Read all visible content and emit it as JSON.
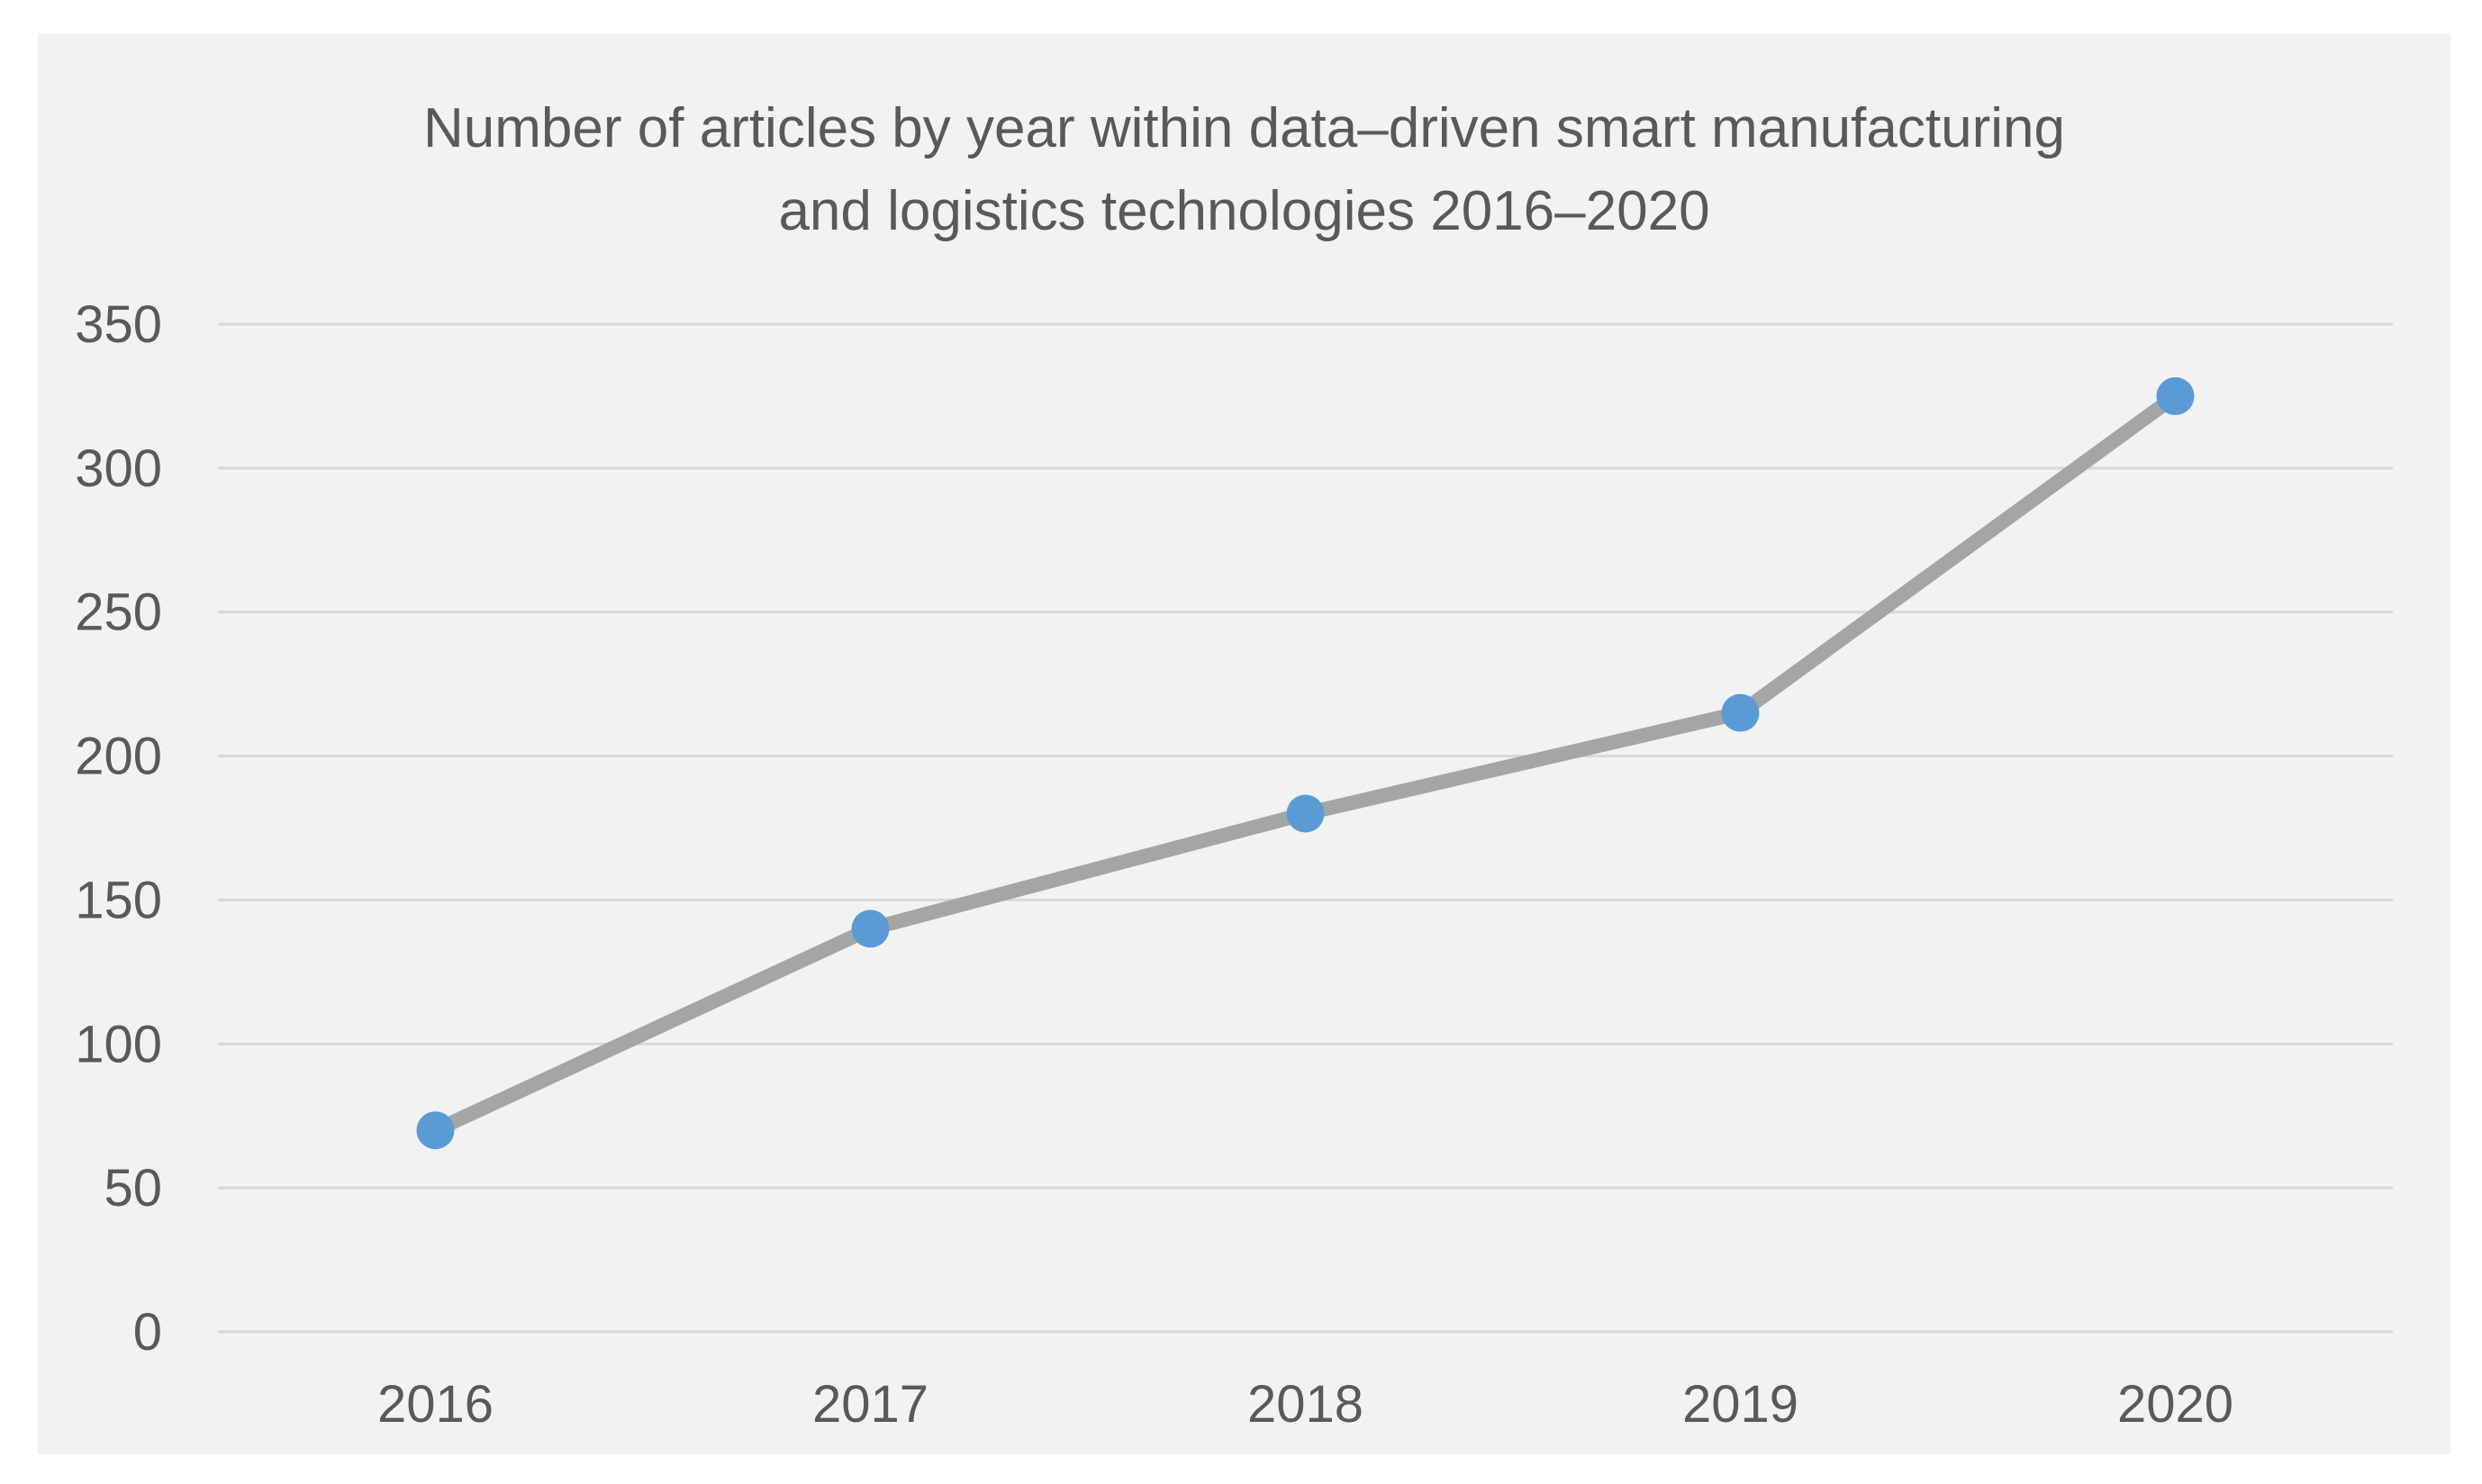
{
  "chart_data": {
    "type": "line",
    "title": "Number of articles by year within data–driven smart manufacturing and logistics technologies 2016–2020",
    "title_lines": [
      "Number of articles by year within data–driven smart manufacturing",
      "and logistics technologies 2016–2020"
    ],
    "categories": [
      "2016",
      "2017",
      "2018",
      "2019",
      "2020"
    ],
    "series": [
      {
        "values": [
          70,
          140,
          180,
          215,
          325
        ]
      }
    ],
    "y_ticks": [
      "0",
      "50",
      "100",
      "150",
      "200",
      "250",
      "300",
      "350"
    ],
    "ylim": [
      0,
      350
    ],
    "xlabel": "",
    "ylabel": "",
    "grid": true,
    "legend": "none",
    "colors": {
      "line": "#a5a5a5",
      "marker": "#5b9bd5",
      "grid": "#d9d9d9",
      "text": "#595959",
      "background": "#f2f2f2"
    }
  }
}
